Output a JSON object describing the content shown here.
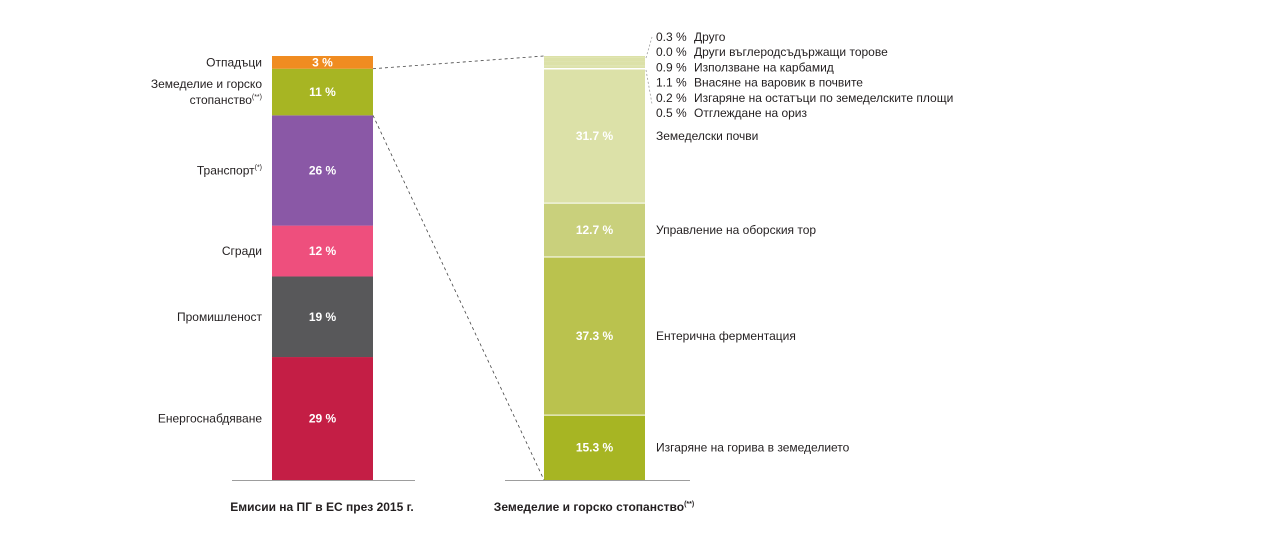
{
  "chart_data": [
    {
      "type": "bar",
      "title": "Емисии на ПГ в ЕС през 2015 г.",
      "stacked": true,
      "series": [
        {
          "name": "Енергоснабдяване",
          "value": 29,
          "label": "29 %",
          "color": "#c41e45"
        },
        {
          "name": "Промишленост",
          "value": 19,
          "label": "19 %",
          "color": "#58585a"
        },
        {
          "name": "Сгради",
          "value": 12,
          "label": "12 %",
          "color": "#ee4f7d"
        },
        {
          "name": "Транспорт",
          "name_sup": "(*)",
          "value": 26,
          "label": "26 %",
          "color": "#8a58a6"
        },
        {
          "name": "Земеделие и горско",
          "name_line2": "стопанство",
          "name_sup": "(**)",
          "value": 11,
          "label": "11 %",
          "color": "#a7b523"
        },
        {
          "name": "Отпадъци",
          "value": 3,
          "label": "3 %",
          "color": "#f08c21"
        }
      ]
    },
    {
      "type": "bar",
      "title": "Земеделие и горско стопанство",
      "title_sup": "(**)",
      "stacked": true,
      "series": [
        {
          "name": "Изгаряне на горива в земеделието",
          "value": 15.3,
          "label": "15.3 %",
          "color": "#a7b523"
        },
        {
          "name": "Ентерична ферментация",
          "value": 37.3,
          "label": "37.3 %",
          "color": "#bac24e"
        },
        {
          "name": "Управление на оборския тор",
          "value": 12.7,
          "label": "12.7 %",
          "color": "#c9d07c"
        },
        {
          "name": "Земеделски почви",
          "value": 31.7,
          "label": "31.7 %",
          "color": "#dce1a8"
        },
        {
          "name": "Отглеждане на ориз",
          "value": 0.5,
          "label": "0.5 %",
          "color": "#dce1a8"
        },
        {
          "name": "Изгаряне на остатъци по земеделските площи",
          "value": 0.2,
          "label": "0.2 %",
          "color": "#dce1a8"
        },
        {
          "name": "Внасяне на варовик в почвите",
          "value": 1.1,
          "label": "1.1 %",
          "color": "#dce1a8"
        },
        {
          "name": "Използване на карбамид",
          "value": 0.9,
          "label": "0.9 %",
          "color": "#dce1a8"
        },
        {
          "name": "Други въглеродсъдържащи торове",
          "value": 0.0,
          "label": "0.0 %",
          "color": "#dce1a8"
        },
        {
          "name": "Друго",
          "value": 0.3,
          "label": "0.3 %",
          "color": "#dce1a8"
        }
      ]
    }
  ]
}
